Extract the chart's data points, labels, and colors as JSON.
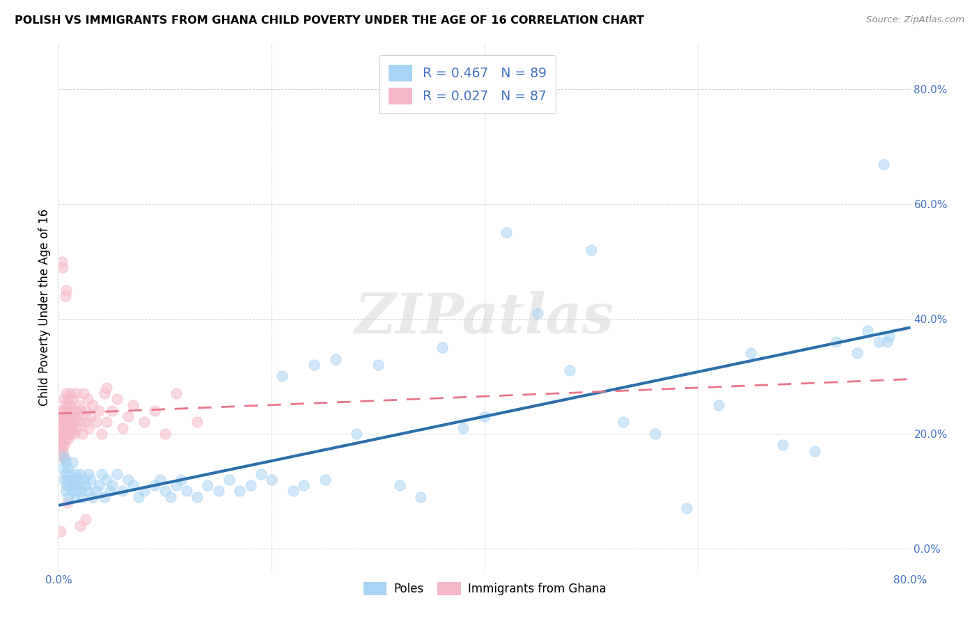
{
  "title": "POLISH VS IMMIGRANTS FROM GHANA CHILD POVERTY UNDER THE AGE OF 16 CORRELATION CHART",
  "source": "Source: ZipAtlas.com",
  "ylabel": "Child Poverty Under the Age of 16",
  "xlim": [
    0.0,
    0.8
  ],
  "ylim": [
    -0.04,
    0.88
  ],
  "xtick_vals": [
    0.0,
    0.2,
    0.4,
    0.6,
    0.8
  ],
  "xtick_labels": [
    "0.0%",
    "",
    "",
    "",
    "80.0%"
  ],
  "ytick_vals": [
    0.0,
    0.2,
    0.4,
    0.6,
    0.8
  ],
  "ytick_labels": [
    "0.0%",
    "20.0%",
    "40.0%",
    "60.0%",
    "80.0%"
  ],
  "poles_R": 0.467,
  "poles_N": 89,
  "ghana_R": 0.027,
  "ghana_N": 87,
  "legend_label_poles": "Poles",
  "legend_label_ghana": "Immigrants from Ghana",
  "poles_color": "#a8d4f5",
  "ghana_color": "#f5b8c8",
  "poles_line_color": "#2c6fad",
  "ghana_line_color": "#e8758a",
  "legend_text_color": "#4472c4",
  "tick_color": "#4472c4",
  "background_color": "#ffffff",
  "grid_color": "#cccccc",
  "watermark": "ZIPatlas",
  "poles_x": [
    0.004,
    0.005,
    0.005,
    0.006,
    0.006,
    0.007,
    0.007,
    0.008,
    0.008,
    0.009,
    0.01,
    0.011,
    0.012,
    0.013,
    0.013,
    0.014,
    0.015,
    0.016,
    0.017,
    0.018,
    0.019,
    0.02,
    0.021,
    0.022,
    0.023,
    0.025,
    0.027,
    0.028,
    0.03,
    0.032,
    0.035,
    0.038,
    0.04,
    0.043,
    0.045,
    0.048,
    0.05,
    0.055,
    0.06,
    0.065,
    0.07,
    0.075,
    0.08,
    0.09,
    0.095,
    0.1,
    0.105,
    0.11,
    0.115,
    0.12,
    0.13,
    0.14,
    0.15,
    0.16,
    0.17,
    0.18,
    0.19,
    0.2,
    0.21,
    0.22,
    0.23,
    0.24,
    0.25,
    0.26,
    0.28,
    0.3,
    0.32,
    0.34,
    0.36,
    0.38,
    0.4,
    0.42,
    0.45,
    0.48,
    0.5,
    0.53,
    0.56,
    0.59,
    0.62,
    0.65,
    0.68,
    0.71,
    0.73,
    0.75,
    0.76,
    0.77,
    0.775,
    0.778,
    0.78
  ],
  "poles_y": [
    0.14,
    0.12,
    0.16,
    0.13,
    0.1,
    0.15,
    0.11,
    0.12,
    0.14,
    0.09,
    0.11,
    0.13,
    0.1,
    0.12,
    0.15,
    0.11,
    0.09,
    0.13,
    0.1,
    0.12,
    0.11,
    0.13,
    0.1,
    0.09,
    0.12,
    0.11,
    0.1,
    0.13,
    0.12,
    0.09,
    0.1,
    0.11,
    0.13,
    0.09,
    0.12,
    0.1,
    0.11,
    0.13,
    0.1,
    0.12,
    0.11,
    0.09,
    0.1,
    0.11,
    0.12,
    0.1,
    0.09,
    0.11,
    0.12,
    0.1,
    0.09,
    0.11,
    0.1,
    0.12,
    0.1,
    0.11,
    0.13,
    0.12,
    0.3,
    0.1,
    0.11,
    0.32,
    0.12,
    0.33,
    0.2,
    0.32,
    0.11,
    0.09,
    0.35,
    0.21,
    0.23,
    0.55,
    0.41,
    0.31,
    0.52,
    0.22,
    0.2,
    0.07,
    0.25,
    0.34,
    0.18,
    0.17,
    0.36,
    0.34,
    0.38,
    0.36,
    0.67,
    0.36,
    0.37
  ],
  "ghana_x": [
    0.001,
    0.001,
    0.001,
    0.002,
    0.002,
    0.002,
    0.002,
    0.003,
    0.003,
    0.003,
    0.003,
    0.003,
    0.004,
    0.004,
    0.004,
    0.004,
    0.005,
    0.005,
    0.005,
    0.005,
    0.005,
    0.005,
    0.006,
    0.006,
    0.006,
    0.006,
    0.007,
    0.007,
    0.007,
    0.007,
    0.008,
    0.008,
    0.008,
    0.009,
    0.009,
    0.009,
    0.01,
    0.01,
    0.01,
    0.011,
    0.011,
    0.012,
    0.012,
    0.013,
    0.013,
    0.014,
    0.015,
    0.015,
    0.016,
    0.016,
    0.017,
    0.018,
    0.019,
    0.02,
    0.021,
    0.022,
    0.023,
    0.025,
    0.026,
    0.027,
    0.028,
    0.03,
    0.032,
    0.035,
    0.038,
    0.04,
    0.043,
    0.045,
    0.05,
    0.055,
    0.06,
    0.065,
    0.07,
    0.08,
    0.09,
    0.1,
    0.11,
    0.13,
    0.045,
    0.006,
    0.007,
    0.008,
    0.02,
    0.025,
    0.003,
    0.004,
    0.002
  ],
  "ghana_y": [
    0.2,
    0.22,
    0.18,
    0.21,
    0.19,
    0.23,
    0.17,
    0.2,
    0.22,
    0.18,
    0.24,
    0.16,
    0.21,
    0.19,
    0.23,
    0.17,
    0.2,
    0.22,
    0.18,
    0.24,
    0.16,
    0.26,
    0.21,
    0.19,
    0.23,
    0.25,
    0.2,
    0.22,
    0.27,
    0.24,
    0.21,
    0.19,
    0.23,
    0.2,
    0.22,
    0.26,
    0.21,
    0.23,
    0.25,
    0.2,
    0.27,
    0.22,
    0.24,
    0.21,
    0.26,
    0.23,
    0.2,
    0.22,
    0.24,
    0.27,
    0.21,
    0.23,
    0.25,
    0.22,
    0.24,
    0.2,
    0.27,
    0.22,
    0.24,
    0.26,
    0.21,
    0.23,
    0.25,
    0.22,
    0.24,
    0.2,
    0.27,
    0.22,
    0.24,
    0.26,
    0.21,
    0.23,
    0.25,
    0.22,
    0.24,
    0.2,
    0.27,
    0.22,
    0.28,
    0.44,
    0.45,
    0.08,
    0.04,
    0.05,
    0.5,
    0.49,
    0.03
  ],
  "poles_trend_x": [
    0.0,
    0.8
  ],
  "poles_trend_y": [
    0.075,
    0.385
  ],
  "ghana_trend_x": [
    0.0,
    0.8
  ],
  "ghana_trend_y": [
    0.235,
    0.295
  ]
}
